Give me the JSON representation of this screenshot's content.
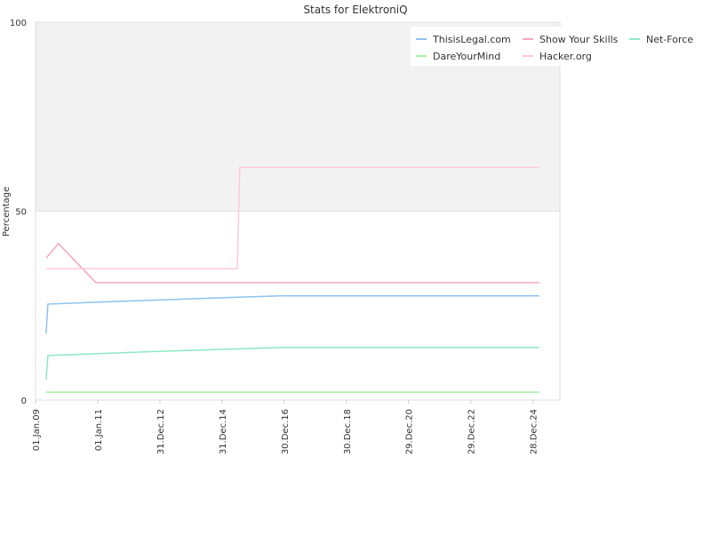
{
  "chart_data": {
    "type": "line",
    "title": "Stats for ElektroniQ",
    "y_label": "Percentage",
    "xlim": [
      "01.Jan.09",
      "10.Nov.25"
    ],
    "xticks": [
      "01.Jan.09",
      "01.Jan.11",
      "31.Dec.12",
      "31.Dec.14",
      "30.Dec.16",
      "30.Dec.18",
      "29.Dec.20",
      "29.Dec.22",
      "28.Dec.24"
    ],
    "ylim": [
      0,
      100
    ],
    "yticks": [
      0,
      50,
      100
    ],
    "series": [
      {
        "name": "ThisisLegal.com",
        "color": "#8ec1f0",
        "x": [
          "05.May.09",
          "26.May.09",
          "01.Jan.11",
          "01.Jan.13",
          "01.Jan.15",
          "10.Nov.16",
          "13.Mar.25"
        ],
        "values": [
          17.6,
          25.4,
          25.9,
          26.5,
          27.1,
          27.6,
          27.6
        ]
      },
      {
        "name": "Show Your Skills",
        "color": "#f4a6c0",
        "x": [
          "05.May.09",
          "28.Sep.09",
          "10.Dec.10",
          "13.Mar.25"
        ],
        "values": [
          37.6,
          41.4,
          31.1,
          31.1
        ]
      },
      {
        "name": "Net-Force",
        "color": "#8ee8c4",
        "x": [
          "05.May.09",
          "26.May.09",
          "01.Jan.13",
          "10.Nov.16",
          "13.Mar.25"
        ],
        "values": [
          5.4,
          11.8,
          12.9,
          13.9,
          13.9
        ]
      },
      {
        "name": "DareYourMind",
        "color": "#a4eea4",
        "x": [
          "05.May.09",
          "13.Mar.25"
        ],
        "values": [
          2.1,
          2.1
        ]
      },
      {
        "name": "Hacker.org",
        "color": "#ffc9d4",
        "x": [
          "05.May.09",
          "27.Jun.15",
          "27.Jul.15",
          "13.Mar.25"
        ],
        "values": [
          34.8,
          34.8,
          61.6,
          61.6
        ]
      }
    ]
  }
}
